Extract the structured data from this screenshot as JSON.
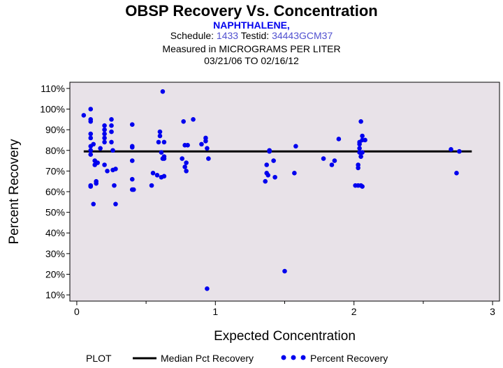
{
  "header": {
    "title": "OBSP Recovery Vs. Concentration",
    "subtitle": "NAPHTHALENE,",
    "schedule_label": "Schedule:",
    "schedule_value": "1433",
    "testid_label": "Testid:",
    "testid_value": "34443GCM37",
    "measured_label": "Measured in",
    "measured_units": "MICROGRAMS PER LITER",
    "date_range": "03/21/06 TO 02/16/12"
  },
  "colors": {
    "title": "#000000",
    "highlight": "#0000ee",
    "value_link": "#5050d0",
    "plot_bg": "#e8e2e8",
    "points": "#0000ee",
    "median_line": "#000000"
  },
  "legend": {
    "plot_label": "PLOT",
    "median_label": "Median Pct Recovery",
    "points_label": "Percent Recovery"
  },
  "chart_data": {
    "type": "scatter",
    "title": "OBSP Recovery Vs. Concentration",
    "xlabel": "Expected Concentration",
    "ylabel": "Percent Recovery",
    "xlim": [
      -0.05,
      3.05
    ],
    "ylim": [
      7,
      113
    ],
    "x_ticks": [
      0,
      1,
      2,
      3
    ],
    "x_minor_ticks": [
      0.5,
      1.5,
      2.5
    ],
    "y_ticks": [
      10,
      20,
      30,
      40,
      50,
      60,
      70,
      80,
      90,
      100,
      110
    ],
    "y_tick_suffix": "%",
    "median": {
      "value": 79.5,
      "x_start": 0.05,
      "x_end": 2.85
    },
    "series": [
      {
        "name": "Percent Recovery",
        "x": [
          0.05,
          0.1,
          0.1,
          0.1,
          0.1,
          0.1,
          0.1,
          0.1,
          0.1,
          0.1,
          0.1,
          0.12,
          0.12,
          0.13,
          0.13,
          0.14,
          0.14,
          0.15,
          0.17,
          0.2,
          0.2,
          0.2,
          0.2,
          0.2,
          0.2,
          0.22,
          0.25,
          0.25,
          0.25,
          0.25,
          0.26,
          0.26,
          0.27,
          0.28,
          0.28,
          0.4,
          0.4,
          0.4,
          0.4,
          0.4,
          0.4,
          0.41,
          0.54,
          0.55,
          0.58,
          0.59,
          0.6,
          0.6,
          0.61,
          0.61,
          0.62,
          0.62,
          0.63,
          0.63,
          0.63,
          0.63,
          0.76,
          0.77,
          0.78,
          0.78,
          0.79,
          0.79,
          0.8,
          0.84,
          0.9,
          0.93,
          0.93,
          0.94,
          0.94,
          0.95,
          1.36,
          1.37,
          1.37,
          1.38,
          1.39,
          1.39,
          1.42,
          1.43,
          1.5,
          1.57,
          1.58,
          1.78,
          1.84,
          1.86,
          1.89,
          2.01,
          2.03,
          2.03,
          2.03,
          2.04,
          2.04,
          2.04,
          2.04,
          2.05,
          2.05,
          2.05,
          2.06,
          2.06,
          2.06,
          2.06,
          2.08,
          2.7,
          2.74,
          2.76
        ],
        "y": [
          97,
          100,
          95,
          94,
          88,
          86,
          82,
          80,
          78,
          63,
          62.5,
          54,
          83,
          75,
          73,
          65,
          64,
          74,
          81,
          92,
          90,
          88,
          86,
          84,
          73,
          70,
          95,
          92,
          89,
          84,
          80,
          70.5,
          63,
          71,
          54,
          92.5,
          82,
          81.5,
          75,
          66,
          61,
          61,
          63,
          69,
          68,
          84,
          89,
          87,
          79,
          67,
          76,
          108.5,
          67.5,
          84,
          77,
          76,
          76,
          94,
          82.5,
          72,
          70,
          74,
          82.5,
          95,
          83,
          86,
          84.5,
          13,
          81,
          76,
          65,
          73,
          69,
          68,
          80,
          79.5,
          75,
          67,
          21.5,
          69,
          82,
          76,
          73,
          75,
          85.5,
          63,
          73,
          71.5,
          63,
          83,
          84,
          81,
          79,
          63,
          77,
          94,
          87,
          85,
          79,
          62.5,
          85,
          80.5,
          69,
          79.5
        ]
      }
    ]
  }
}
